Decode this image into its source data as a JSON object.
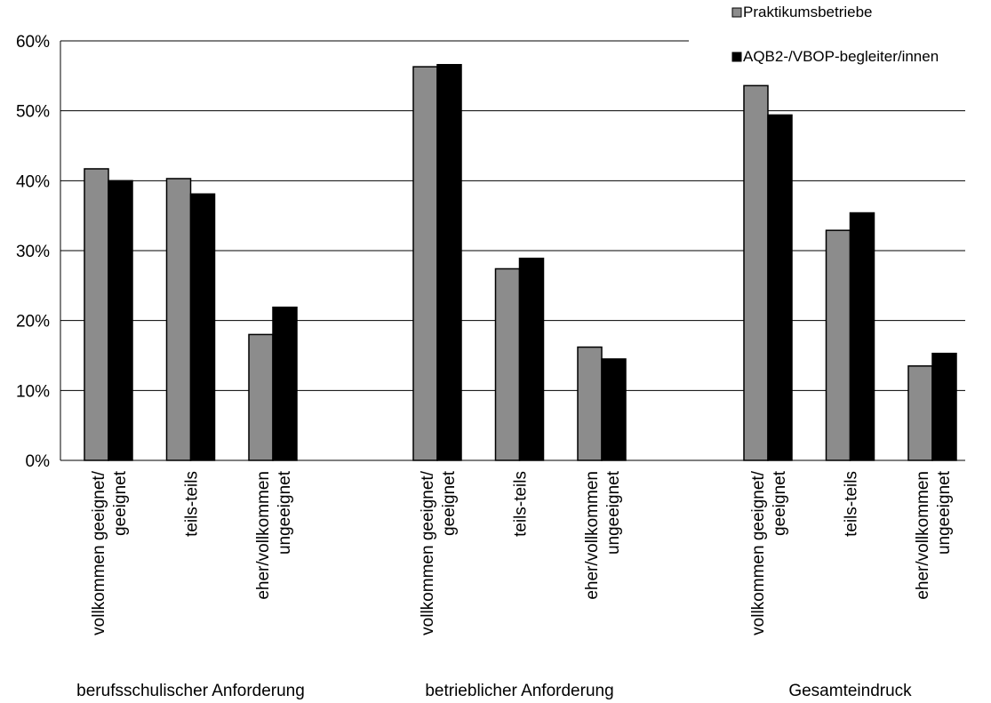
{
  "chart_data": {
    "type": "bar",
    "title": "",
    "xlabel": "",
    "ylabel": "",
    "ylim": [
      0,
      0.6
    ],
    "yticks": [
      "0%",
      "10%",
      "20%",
      "30%",
      "40%",
      "50%",
      "60%"
    ],
    "grid": true,
    "legend_position": "top-right",
    "groups": [
      {
        "label": "berufsschulischer Anforderung",
        "categories": [
          [
            "vollkommen geeignet/",
            "geeignet"
          ],
          [
            "teils-teils"
          ],
          [
            "eher/vollkommen",
            "ungeeignet"
          ]
        ]
      },
      {
        "label": "betrieblicher Anforderung",
        "categories": [
          [
            "vollkommen geeignet/",
            "geeignet"
          ],
          [
            "teils-teils"
          ],
          [
            "eher/vollkommen",
            "ungeeignet"
          ]
        ]
      },
      {
        "label": "Gesamteindruck",
        "categories": [
          [
            "vollkommen geeignet/",
            "geeignet"
          ],
          [
            "teils-teils"
          ],
          [
            "eher/vollkommen",
            "ungeeignet"
          ]
        ]
      }
    ],
    "series": [
      {
        "name": "Praktikumsbetriebe",
        "color": "#8c8c8c",
        "values": [
          0.417,
          0.403,
          0.18,
          0.563,
          0.274,
          0.162,
          0.536,
          0.329,
          0.135
        ]
      },
      {
        "name": "AQB2-/VBOP-begleiter/innen",
        "color": "#000000",
        "values": [
          0.4,
          0.381,
          0.219,
          0.566,
          0.289,
          0.145,
          0.494,
          0.354,
          0.153
        ]
      }
    ]
  }
}
